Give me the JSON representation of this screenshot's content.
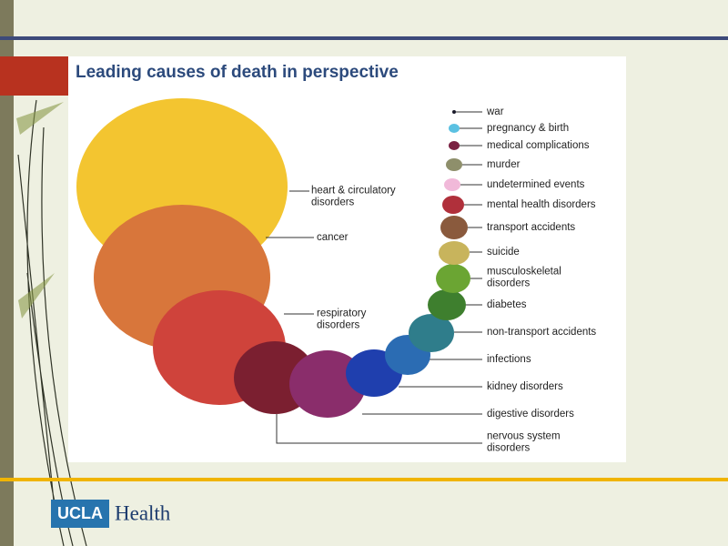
{
  "slide": {
    "title": "Leading causes of death in perspective",
    "logo": {
      "mark": "UCLA",
      "name": "Health"
    },
    "nodes": [
      {
        "label": [
          "heart & circulatory",
          "disorders"
        ],
        "color": "#f3c530"
      },
      {
        "label": [
          "cancer"
        ],
        "color": "#d8763b"
      },
      {
        "label": [
          "respiratory",
          "disorders"
        ],
        "color": "#cf433b"
      },
      {
        "label": [
          "nervous system",
          "disorders"
        ],
        "color": "#7b1f30"
      },
      {
        "label": [
          "digestive disorders"
        ],
        "color": "#8a2d6b"
      },
      {
        "label": [
          "kidney disorders"
        ],
        "color": "#1f3fae"
      },
      {
        "label": [
          "infections"
        ],
        "color": "#2b6cb3"
      },
      {
        "label": [
          "non-transport accidents"
        ],
        "color": "#2f7d8b"
      },
      {
        "label": [
          "diabetes"
        ],
        "color": "#3e7f2e"
      },
      {
        "label": [
          "musculoskeletal",
          "disorders"
        ],
        "color": "#6ba533"
      },
      {
        "label": [
          "suicide"
        ],
        "color": "#c8b45c"
      },
      {
        "label": [
          "transport accidents"
        ],
        "color": "#8a5a3d"
      },
      {
        "label": [
          "mental health disorders"
        ],
        "color": "#b0303b"
      },
      {
        "label": [
          "undetermined events"
        ],
        "color": "#f1b9d9"
      },
      {
        "label": [
          "murder"
        ],
        "color": "#8e8f6b"
      },
      {
        "label": [
          "medical complications"
        ],
        "color": "#7a2142"
      },
      {
        "label": [
          "pregnancy & birth"
        ],
        "color": "#5bc1e2"
      },
      {
        "label": [
          "war"
        ],
        "color": "#1a1a2a"
      }
    ]
  }
}
